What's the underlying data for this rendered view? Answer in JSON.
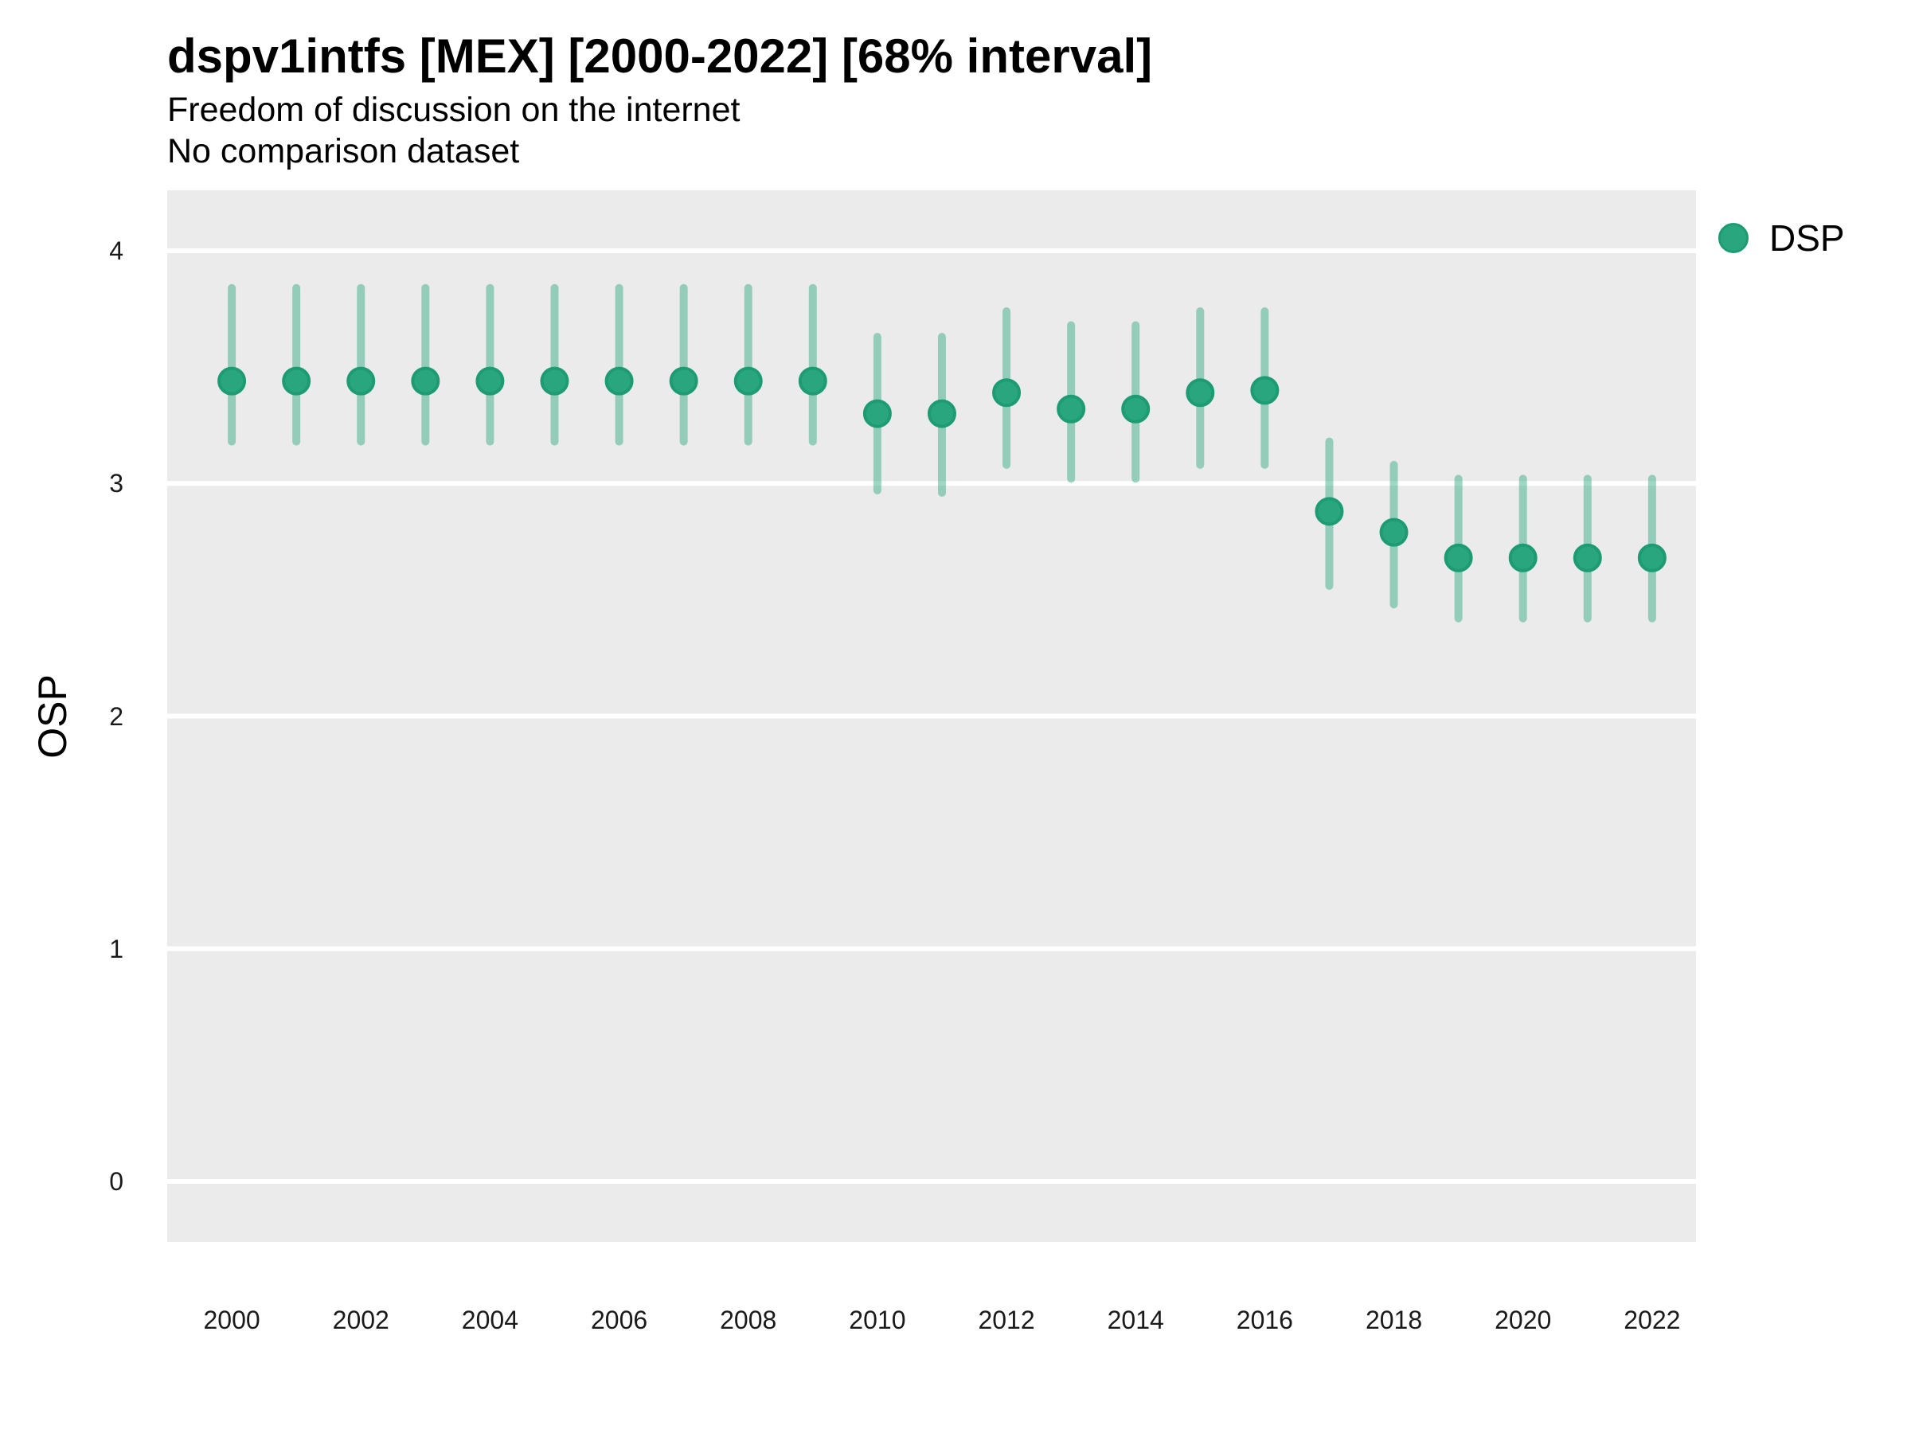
{
  "header": {
    "title": "dspv1intfs [MEX] [2000-2022] [68% interval]",
    "subtitle1": "Freedom of discussion on the internet",
    "subtitle2": "No comparison dataset"
  },
  "legend": {
    "label": "DSP"
  },
  "axes": {
    "y_label": "OSP"
  },
  "colors": {
    "panel_background": "#EBEBEB",
    "gridline": "#FFFFFF",
    "point_fill": "#2AA67E",
    "point_stroke": "#1D9B72",
    "interval_line": "rgba(42,166,126,0.45)",
    "text": "#1a1a1a"
  },
  "chart_data": {
    "type": "scatter",
    "title": "dspv1intfs [MEX] [2000-2022] [68% interval]",
    "subtitle": "Freedom of discussion on the internet",
    "note": "No comparison dataset",
    "xlabel": "",
    "ylabel": "OSP",
    "interval": "68%",
    "grid": "major-horizontal-only",
    "legend_position": "right-top",
    "y_ticks": [
      0,
      1,
      2,
      3,
      4
    ],
    "x_ticks": [
      2000,
      2002,
      2004,
      2006,
      2008,
      2010,
      2012,
      2014,
      2016,
      2018,
      2020,
      2022
    ],
    "x_range_draw": [
      1999.0,
      2022.68
    ],
    "y_range_draw": [
      -0.26,
      4.26
    ],
    "series": [
      {
        "name": "DSP",
        "points": [
          {
            "year": 2000,
            "value": 3.44,
            "low": 3.18,
            "high": 3.84
          },
          {
            "year": 2001,
            "value": 3.44,
            "low": 3.18,
            "high": 3.84
          },
          {
            "year": 2002,
            "value": 3.44,
            "low": 3.18,
            "high": 3.84
          },
          {
            "year": 2003,
            "value": 3.44,
            "low": 3.18,
            "high": 3.84
          },
          {
            "year": 2004,
            "value": 3.44,
            "low": 3.18,
            "high": 3.84
          },
          {
            "year": 2005,
            "value": 3.44,
            "low": 3.18,
            "high": 3.84
          },
          {
            "year": 2006,
            "value": 3.44,
            "low": 3.18,
            "high": 3.84
          },
          {
            "year": 2007,
            "value": 3.44,
            "low": 3.18,
            "high": 3.84
          },
          {
            "year": 2008,
            "value": 3.44,
            "low": 3.18,
            "high": 3.84
          },
          {
            "year": 2009,
            "value": 3.44,
            "low": 3.18,
            "high": 3.84
          },
          {
            "year": 2010,
            "value": 3.3,
            "low": 2.97,
            "high": 3.63
          },
          {
            "year": 2011,
            "value": 3.3,
            "low": 2.96,
            "high": 3.63
          },
          {
            "year": 2012,
            "value": 3.39,
            "low": 3.08,
            "high": 3.74
          },
          {
            "year": 2013,
            "value": 3.32,
            "low": 3.02,
            "high": 3.68
          },
          {
            "year": 2014,
            "value": 3.32,
            "low": 3.02,
            "high": 3.68
          },
          {
            "year": 2015,
            "value": 3.39,
            "low": 3.08,
            "high": 3.74
          },
          {
            "year": 2016,
            "value": 3.4,
            "low": 3.08,
            "high": 3.74
          },
          {
            "year": 2017,
            "value": 2.88,
            "low": 2.56,
            "high": 3.18
          },
          {
            "year": 2018,
            "value": 2.79,
            "low": 2.48,
            "high": 3.08
          },
          {
            "year": 2019,
            "value": 2.68,
            "low": 2.42,
            "high": 3.02
          },
          {
            "year": 2020,
            "value": 2.68,
            "low": 2.42,
            "high": 3.02
          },
          {
            "year": 2021,
            "value": 2.68,
            "low": 2.42,
            "high": 3.02
          },
          {
            "year": 2022,
            "value": 2.68,
            "low": 2.42,
            "high": 3.02
          }
        ]
      }
    ]
  }
}
